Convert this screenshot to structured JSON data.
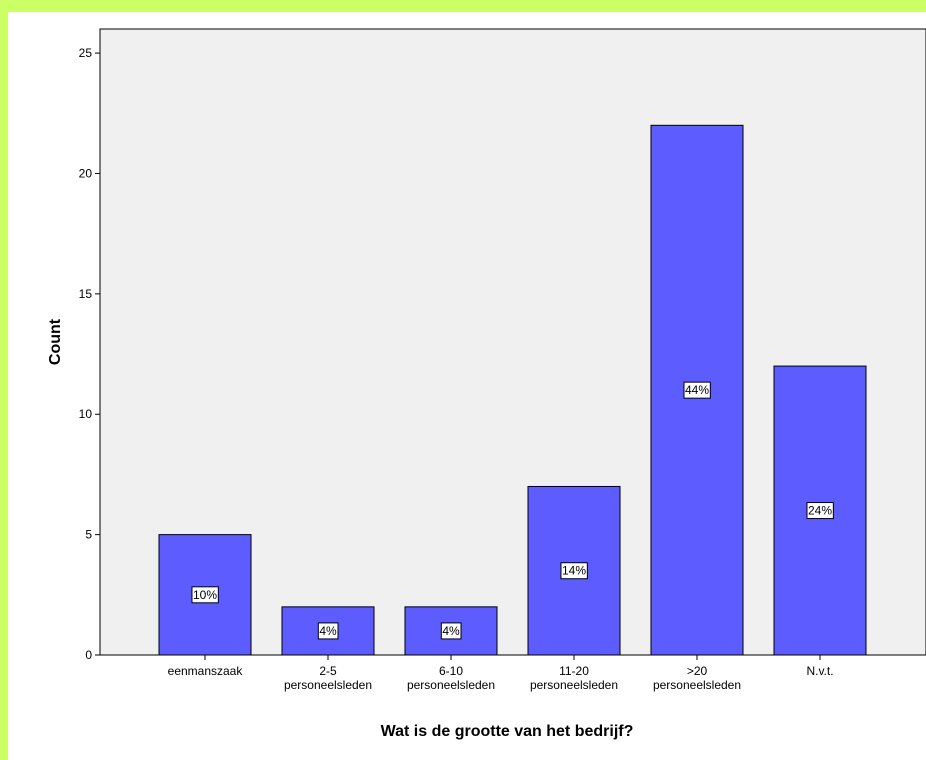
{
  "chart_data": {
    "type": "bar",
    "title": "",
    "xlabel": "Wat is de grootte van het bedrijf?",
    "ylabel": "Count",
    "categories": [
      [
        "eenmanszaak"
      ],
      [
        "2-5",
        "personeelsleden"
      ],
      [
        "6-10",
        "personeelsleden"
      ],
      [
        "11-20",
        "personeelsleden"
      ],
      [
        ">20",
        "personeelsleden"
      ],
      [
        "N.v.t."
      ]
    ],
    "values": [
      5,
      2,
      2,
      7,
      22,
      12
    ],
    "data_labels": [
      "10%",
      "4%",
      "4%",
      "14%",
      "44%",
      "24%"
    ],
    "ylim": [
      0,
      26
    ],
    "yticks": [
      0,
      5,
      10,
      15,
      20,
      25
    ],
    "grid": false,
    "legend": "none",
    "colors": {
      "bar_fill": "#5c5cff",
      "bar_stroke": "#000000",
      "plot_background": "#f0f0f0",
      "outer_background": "#ccff66",
      "frame_background": "#ffffff"
    }
  }
}
